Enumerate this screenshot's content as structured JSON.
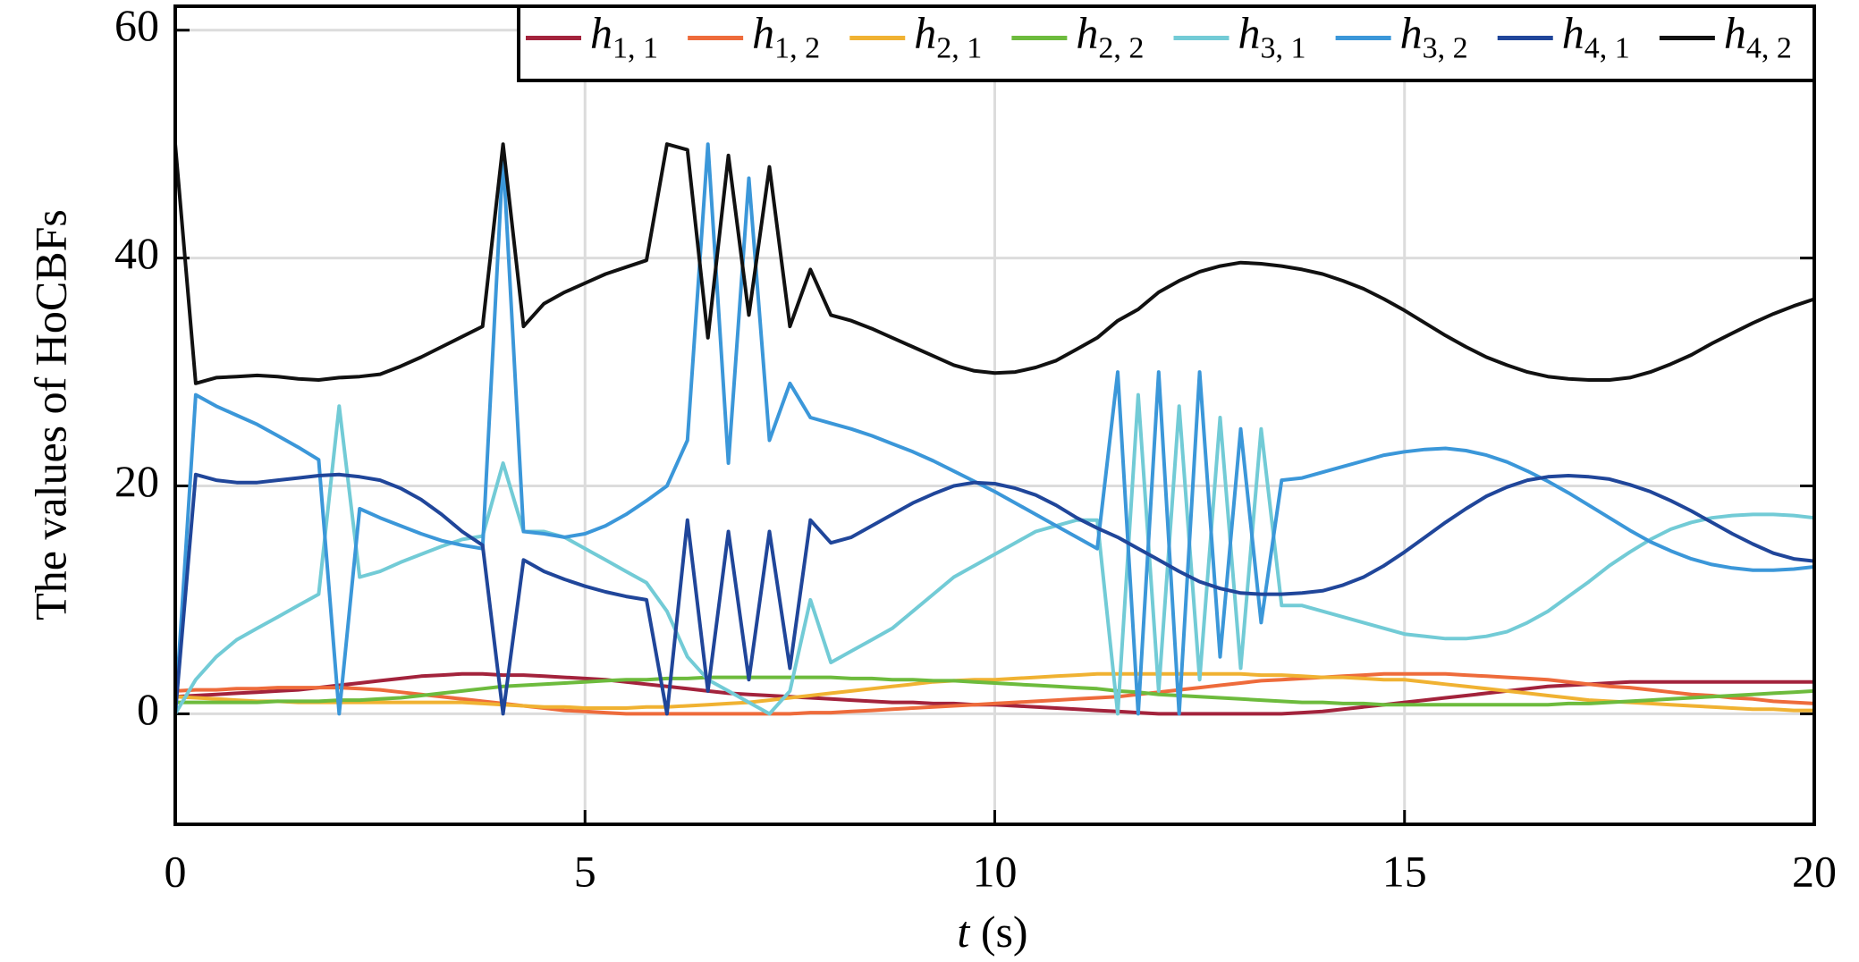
{
  "chart_data": {
    "type": "line",
    "xlabel": "t (s)",
    "ylabel": "The values of HoCBFs",
    "xlim": [
      0,
      20
    ],
    "ylim": [
      -9.7,
      62.1
    ],
    "xticks": [
      0,
      5,
      10,
      15,
      20
    ],
    "yticks": [
      0,
      20,
      40,
      60
    ],
    "grid": true,
    "legend": "top-right",
    "x": [
      0,
      0.25,
      0.5,
      0.75,
      1,
      1.25,
      1.5,
      1.75,
      2,
      2.25,
      2.5,
      2.75,
      3,
      3.25,
      3.5,
      3.75,
      4,
      4.25,
      4.5,
      4.75,
      5,
      5.25,
      5.5,
      5.75,
      6,
      6.25,
      6.5,
      6.75,
      7,
      7.25,
      7.5,
      7.75,
      8,
      8.25,
      8.5,
      8.75,
      9,
      9.25,
      9.5,
      9.75,
      10,
      10.25,
      10.5,
      10.75,
      11,
      11.25,
      11.5,
      11.75,
      12,
      12.25,
      12.5,
      12.75,
      13,
      13.25,
      13.5,
      13.75,
      14,
      14.25,
      14.5,
      14.75,
      15,
      15.25,
      15.5,
      15.75,
      16,
      16.25,
      16.5,
      16.75,
      17,
      17.25,
      17.5,
      17.75,
      18,
      18.25,
      18.5,
      18.75,
      19,
      19.25,
      19.5,
      19.75,
      20
    ],
    "series": [
      {
        "name": "h1, 1",
        "color": "#a3233c",
        "values": [
          1.5,
          1.6,
          1.7,
          1.8,
          1.9,
          2.0,
          2.1,
          2.3,
          2.5,
          2.7,
          2.9,
          3.1,
          3.3,
          3.4,
          3.5,
          3.5,
          3.4,
          3.4,
          3.3,
          3.2,
          3.1,
          3.0,
          2.8,
          2.6,
          2.4,
          2.2,
          2.0,
          1.8,
          1.7,
          1.6,
          1.5,
          1.4,
          1.3,
          1.2,
          1.1,
          1.0,
          1.0,
          0.9,
          0.9,
          0.8,
          0.8,
          0.7,
          0.6,
          0.5,
          0.4,
          0.3,
          0.2,
          0.1,
          0,
          0,
          0,
          0,
          0,
          0,
          0,
          0.1,
          0.2,
          0.4,
          0.6,
          0.8,
          1.0,
          1.2,
          1.4,
          1.6,
          1.8,
          2.0,
          2.2,
          2.4,
          2.5,
          2.6,
          2.7,
          2.8,
          2.8,
          2.8,
          2.8,
          2.8,
          2.8,
          2.8,
          2.8,
          2.8,
          2.8
        ]
      },
      {
        "name": "h1, 2",
        "color": "#ee6b3b",
        "values": [
          2.0,
          2.1,
          2.1,
          2.2,
          2.2,
          2.3,
          2.3,
          2.3,
          2.3,
          2.2,
          2.1,
          1.9,
          1.7,
          1.5,
          1.3,
          1.1,
          0.9,
          0.7,
          0.5,
          0.3,
          0.2,
          0.1,
          0,
          0,
          0,
          0,
          0,
          0,
          0,
          0,
          0,
          0.1,
          0.1,
          0.2,
          0.3,
          0.4,
          0.5,
          0.6,
          0.7,
          0.8,
          0.9,
          1.0,
          1.1,
          1.2,
          1.3,
          1.4,
          1.5,
          1.7,
          1.9,
          2.1,
          2.3,
          2.5,
          2.7,
          2.9,
          3.0,
          3.1,
          3.2,
          3.3,
          3.4,
          3.5,
          3.5,
          3.5,
          3.5,
          3.4,
          3.3,
          3.2,
          3.1,
          3.0,
          2.8,
          2.6,
          2.4,
          2.3,
          2.1,
          1.9,
          1.7,
          1.6,
          1.4,
          1.3,
          1.1,
          1.0,
          0.9
        ]
      },
      {
        "name": "h2, 1",
        "color": "#f0b232",
        "values": [
          1.5,
          1.4,
          1.3,
          1.2,
          1.1,
          1.1,
          1.0,
          1.0,
          1.0,
          1.0,
          1.0,
          1.0,
          1.0,
          1.0,
          1.0,
          0.9,
          0.8,
          0.7,
          0.6,
          0.6,
          0.5,
          0.5,
          0.5,
          0.6,
          0.6,
          0.7,
          0.8,
          0.9,
          1.0,
          1.2,
          1.4,
          1.6,
          1.8,
          2.0,
          2.2,
          2.4,
          2.6,
          2.8,
          2.9,
          3.0,
          3.0,
          3.1,
          3.2,
          3.3,
          3.4,
          3.5,
          3.5,
          3.5,
          3.5,
          3.5,
          3.5,
          3.5,
          3.5,
          3.4,
          3.4,
          3.3,
          3.2,
          3.2,
          3.1,
          3.0,
          3.0,
          2.8,
          2.6,
          2.4,
          2.2,
          2.0,
          1.8,
          1.6,
          1.4,
          1.2,
          1.1,
          1.0,
          0.9,
          0.8,
          0.7,
          0.6,
          0.5,
          0.4,
          0.4,
          0.3,
          0.3
        ]
      },
      {
        "name": "h2, 2",
        "color": "#6dbb3d",
        "values": [
          1.0,
          1.0,
          1.0,
          1.0,
          1.0,
          1.1,
          1.1,
          1.1,
          1.2,
          1.2,
          1.3,
          1.4,
          1.6,
          1.8,
          2.0,
          2.2,
          2.4,
          2.5,
          2.6,
          2.7,
          2.8,
          2.9,
          3.0,
          3.0,
          3.1,
          3.1,
          3.2,
          3.2,
          3.2,
          3.2,
          3.2,
          3.2,
          3.2,
          3.1,
          3.1,
          3.0,
          3.0,
          2.9,
          2.9,
          2.8,
          2.7,
          2.6,
          2.5,
          2.4,
          2.3,
          2.2,
          2.0,
          1.9,
          1.7,
          1.6,
          1.5,
          1.4,
          1.3,
          1.2,
          1.1,
          1.0,
          1.0,
          0.9,
          0.9,
          0.8,
          0.8,
          0.8,
          0.8,
          0.8,
          0.8,
          0.8,
          0.8,
          0.8,
          0.9,
          0.9,
          1.0,
          1.1,
          1.2,
          1.3,
          1.4,
          1.5,
          1.6,
          1.7,
          1.8,
          1.9,
          2.0
        ]
      },
      {
        "name": "h3, 1",
        "color": "#72cbd6",
        "values": [
          0,
          3,
          5,
          6.5,
          7.5,
          8.5,
          9.5,
          10.5,
          27,
          12,
          12.5,
          13.3,
          14,
          14.7,
          15.3,
          15.6,
          22,
          16,
          16,
          15.5,
          14.5,
          13.5,
          12.5,
          11.5,
          9,
          5,
          3,
          2,
          1,
          0,
          2,
          10,
          4.5,
          5.5,
          6.5,
          7.5,
          9,
          10.5,
          12,
          13,
          14,
          15,
          16,
          16.5,
          17,
          17,
          0,
          28,
          2,
          27,
          3,
          26,
          4,
          25,
          9.5,
          9.5,
          9,
          8.5,
          8,
          7.5,
          7,
          6.8,
          6.6,
          6.6,
          6.8,
          7.2,
          8,
          9,
          10.3,
          11.6,
          13,
          14.2,
          15.3,
          16.2,
          16.8,
          17.2,
          17.4,
          17.5,
          17.5,
          17.4,
          17.2
        ]
      },
      {
        "name": "h3, 2",
        "color": "#3b97d9",
        "values": [
          0,
          28,
          27,
          26.2,
          25.4,
          24.4,
          23.4,
          22.3,
          0,
          18,
          17.2,
          16.5,
          15.8,
          15.2,
          14.8,
          14.5,
          49,
          16,
          15.8,
          15.5,
          15.8,
          16.5,
          17.5,
          18.7,
          20,
          24,
          50,
          22,
          47,
          24,
          29,
          26,
          25.5,
          25,
          24.4,
          23.7,
          23,
          22.2,
          21.3,
          20.4,
          19.5,
          18.5,
          17.5,
          16.5,
          15.5,
          14.5,
          30,
          0,
          30,
          0,
          30,
          5,
          25,
          8,
          20.5,
          20.7,
          21.2,
          21.7,
          22.2,
          22.7,
          23,
          23.2,
          23.3,
          23.1,
          22.7,
          22.1,
          21.3,
          20.4,
          19.4,
          18.3,
          17.2,
          16.1,
          15.1,
          14.3,
          13.6,
          13.1,
          12.8,
          12.6,
          12.6,
          12.7,
          12.9
        ]
      },
      {
        "name": "h4, 1",
        "color": "#20469a",
        "values": [
          0,
          21,
          20.5,
          20.3,
          20.3,
          20.5,
          20.7,
          20.9,
          21,
          20.8,
          20.5,
          19.8,
          18.8,
          17.5,
          16,
          14.8,
          0,
          13.5,
          12.5,
          11.8,
          11.2,
          10.7,
          10.3,
          10,
          0,
          17,
          2,
          16,
          3,
          16,
          4,
          17,
          15,
          15.5,
          16.5,
          17.5,
          18.5,
          19.3,
          20,
          20.3,
          20.2,
          19.8,
          19.2,
          18.3,
          17.2,
          16.3,
          15.5,
          14.5,
          13.5,
          12.5,
          11.6,
          11,
          10.6,
          10.5,
          10.5,
          10.6,
          10.8,
          11.3,
          12,
          13,
          14.2,
          15.5,
          16.8,
          18,
          19.1,
          19.9,
          20.5,
          20.8,
          20.9,
          20.8,
          20.6,
          20.1,
          19.5,
          18.7,
          17.8,
          16.8,
          15.8,
          14.9,
          14.1,
          13.6,
          13.4
        ]
      },
      {
        "name": "h4, 2",
        "color": "#111111",
        "values": [
          50,
          29,
          29.5,
          29.6,
          29.7,
          29.6,
          29.4,
          29.3,
          29.5,
          29.6,
          29.8,
          30.5,
          31.3,
          32.2,
          33.1,
          34,
          50,
          34,
          36,
          37,
          37.8,
          38.6,
          39.2,
          39.8,
          50,
          49.5,
          33,
          49,
          35,
          48,
          34,
          39,
          35,
          34.5,
          33.8,
          33,
          32.2,
          31.4,
          30.6,
          30.1,
          29.9,
          30,
          30.4,
          31,
          32,
          33,
          34.5,
          35.5,
          37,
          38,
          38.8,
          39.3,
          39.6,
          39.5,
          39.3,
          39,
          38.6,
          38,
          37.3,
          36.4,
          35.4,
          34.3,
          33.2,
          32.2,
          31.3,
          30.6,
          30,
          29.6,
          29.4,
          29.3,
          29.3,
          29.5,
          30,
          30.7,
          31.5,
          32.5,
          33.4,
          34.3,
          35.1,
          35.8,
          36.4
        ]
      }
    ]
  }
}
